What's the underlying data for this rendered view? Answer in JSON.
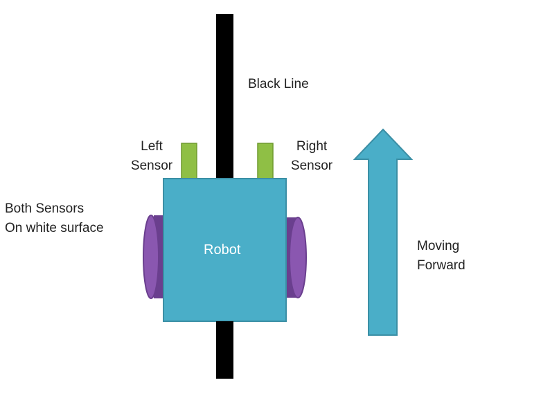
{
  "labels": {
    "black_line": "Black Line",
    "left_sensor": [
      "Left",
      "Sensor"
    ],
    "right_sensor": [
      "Right",
      "Sensor"
    ],
    "both_sensors": [
      "Both Sensors",
      "On white surface"
    ],
    "robot": "Robot",
    "moving": [
      "Moving",
      "Forward"
    ]
  },
  "colors": {
    "line": "#000000",
    "robot_body": "#4aaec8",
    "robot_border": "#3b8fa5",
    "sensor": "#8fbf45",
    "sensor_border": "#6f9a2f",
    "wheel": "#8a57b0",
    "wheel_dark": "#6a3f8e",
    "arrow": "#4aaec8",
    "arrow_border": "#3b8fa5"
  }
}
